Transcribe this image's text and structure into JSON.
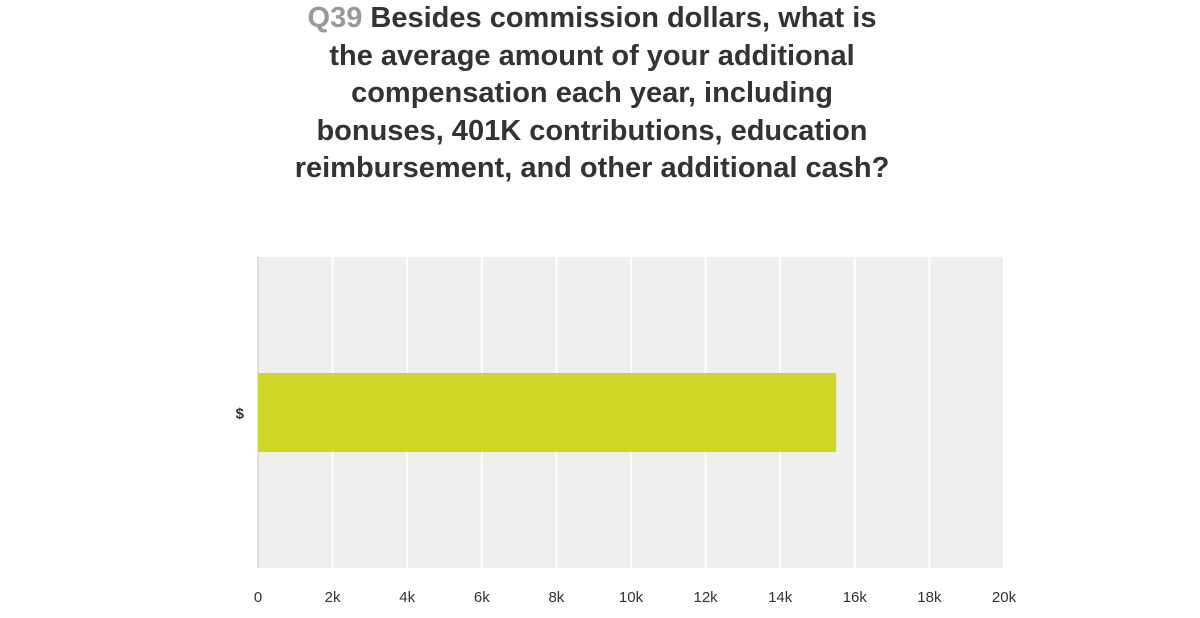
{
  "question": {
    "number": "Q39",
    "lines": [
      "Besides commission dollars, what is",
      "the average amount of your additional",
      "compensation each year, including",
      "bonuses, 401K contributions, education",
      "reimbursement, and other additional cash?"
    ]
  },
  "colors": {
    "bar": "#cfd626",
    "plot_background": "#efefef",
    "gridline": "#ffffff",
    "title_number": "#999999",
    "title_text": "#333333",
    "axis_text": "#333333"
  },
  "chart_data": {
    "type": "bar",
    "orientation": "horizontal",
    "categories": [
      "$"
    ],
    "values": [
      15500
    ],
    "xlim": [
      0,
      20000
    ],
    "x_ticks": [
      0,
      2000,
      4000,
      6000,
      8000,
      10000,
      12000,
      14000,
      16000,
      18000,
      20000
    ],
    "x_tick_labels": [
      "0",
      "2k",
      "4k",
      "6k",
      "8k",
      "10k",
      "12k",
      "14k",
      "16k",
      "18k",
      "20k"
    ],
    "grid": true,
    "title": "Q39 Besides commission dollars, what is the average amount of your additional compensation each year, including bonuses, 401K contributions, education reimbursement, and other additional cash?",
    "xlabel": "",
    "ylabel": ""
  }
}
